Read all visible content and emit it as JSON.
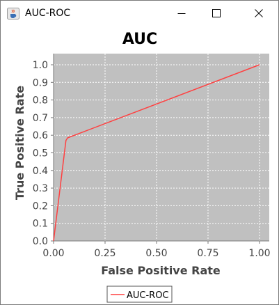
{
  "window": {
    "title": "AUC-ROC",
    "icons": {
      "app": "java-cup-icon",
      "minimize": "minimize-icon",
      "maximize": "maximize-icon",
      "close": "close-icon"
    }
  },
  "colors": {
    "plot_background": "#c0c0c0",
    "gridline": "#ffffff",
    "series": "#ff4040"
  },
  "chart_data": {
    "type": "line",
    "title": "AUC",
    "xlabel": "False Positive Rate",
    "ylabel": "True Positive Rate",
    "xlim": [
      0.0,
      1.0
    ],
    "ylim": [
      0.0,
      1.0
    ],
    "x_ticks": [
      "0.00",
      "0.25",
      "0.50",
      "0.75",
      "1.00"
    ],
    "y_ticks": [
      "0.0",
      "0.1",
      "0.2",
      "0.3",
      "0.4",
      "0.5",
      "0.6",
      "0.7",
      "0.8",
      "0.9",
      "1.0"
    ],
    "grid": true,
    "legend_position": "bottom",
    "series": [
      {
        "name": "AUC-ROC",
        "x": [
          0.0,
          0.06,
          0.068,
          1.0
        ],
        "y": [
          0.0,
          0.57,
          0.585,
          1.0
        ]
      }
    ]
  }
}
